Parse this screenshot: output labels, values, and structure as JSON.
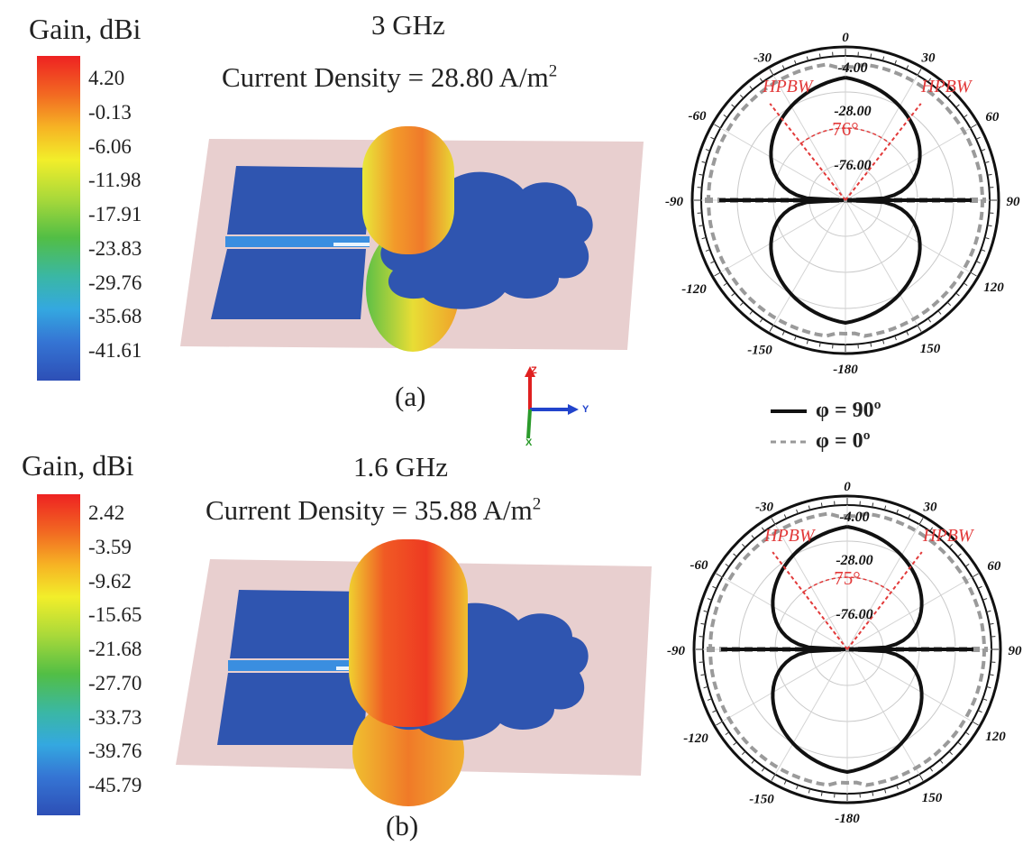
{
  "panel_a": {
    "gain_title": "Gain, dBi",
    "gain_ticks": [
      "4.20",
      "-0.13",
      "-6.06",
      "-11.98",
      "-17.91",
      "-23.83",
      "-29.76",
      "-35.68",
      "-41.61"
    ],
    "frequency": "3 GHz",
    "current_density_text": "Current Density = 28.80 A/m",
    "current_density_sup": "2",
    "sub_label": "(a)",
    "polar": {
      "angle_labels": {
        "a0": "0",
        "a30": "30",
        "an30": "-30",
        "a60": "60",
        "an60": "-60",
        "a90": "90",
        "an90": "-90",
        "a120": "120",
        "an120": "-120",
        "a150": "150",
        "an150": "-150",
        "a180": "-180"
      },
      "radial_labels": [
        "-4.00",
        "-28.00",
        "-76.00"
      ],
      "hpbw_left": "HPBW",
      "hpbw_right": "HPBW",
      "beamwidth": "76°"
    }
  },
  "panel_b": {
    "gain_title": "Gain, dBi",
    "gain_ticks": [
      "2.42",
      "-3.59",
      "-9.62",
      "-15.65",
      "-21.68",
      "-27.70",
      "-33.73",
      "-39.76",
      "-45.79"
    ],
    "frequency": "1.6 GHz",
    "current_density_text": "Current Density = 35.88 A/m",
    "current_density_sup": "2",
    "sub_label": "(b)",
    "polar": {
      "angle_labels": {
        "a0": "0",
        "a30": "30",
        "an30": "-30",
        "a60": "60",
        "an60": "-60",
        "a90": "90",
        "an90": "-90",
        "a120": "120",
        "an120": "-120",
        "a150": "150",
        "an150": "-150",
        "a180": "-180"
      },
      "radial_labels": [
        "-4.00",
        "-28.00",
        "-76.00"
      ],
      "hpbw_left": "HPBW",
      "hpbw_right": "HPBW",
      "beamwidth": "75°"
    }
  },
  "axes_triad": {
    "z": "Z",
    "y": "Y",
    "x": "X"
  },
  "legend": {
    "solid": "φ = 90º",
    "dashed": "φ = 0º"
  },
  "colors": {
    "patch_blue": "#2f55b0",
    "substrate_pink": "#e8cfcf",
    "hpbw_red": "#e23a3a",
    "pattern_black": "#111111",
    "pattern_grey": "#9a9a9a"
  }
}
